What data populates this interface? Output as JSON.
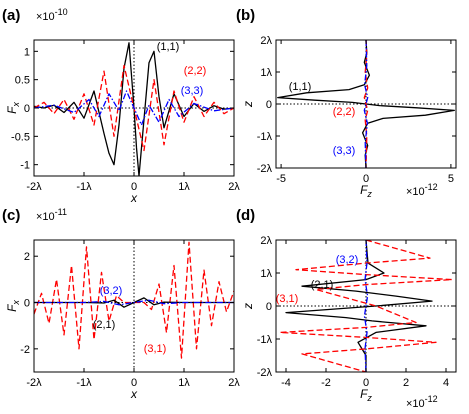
{
  "figure": {
    "panels": [
      {
        "id": "a",
        "letter": "(a)"
      },
      {
        "id": "b",
        "letter": "(b)"
      },
      {
        "id": "c",
        "letter": "(c)"
      },
      {
        "id": "d",
        "letter": "(d)"
      }
    ]
  },
  "colors": {
    "black": "#000000",
    "red": "#ff0000",
    "blue": "#0000ff"
  },
  "chart_data": [
    {
      "panel": "(a)",
      "type": "line",
      "xlabel": "x",
      "ylabel": "F_x",
      "exponent": "×10^-10",
      "xlim": [
        -2,
        2
      ],
      "ylim": [
        -1.2,
        1.2
      ],
      "xticks": [
        -2,
        -1,
        0,
        1,
        2
      ],
      "xticklabels": [
        "-2λ",
        "-1λ",
        "0",
        "1λ",
        "2λ"
      ],
      "yticks": [
        -1,
        -0.5,
        0,
        0.5,
        1
      ],
      "yticklabels": [
        "-1",
        "-0.5",
        "0",
        "0.5",
        "1"
      ],
      "zero_lines": [
        "horizontal",
        "vertical"
      ],
      "series": [
        {
          "name": "(1,1)",
          "color": "#000000",
          "style": "solid",
          "x": [
            -2,
            -1.8,
            -1.6,
            -1.4,
            -1.2,
            -1.0,
            -0.8,
            -0.6,
            -0.5,
            -0.4,
            -0.3,
            -0.2,
            -0.1,
            0,
            0.05,
            0.1,
            0.2,
            0.3,
            0.4,
            0.5,
            0.6,
            0.8,
            1.0,
            1.2,
            1.4,
            1.6,
            1.8,
            2
          ],
          "y": [
            0.03,
            0.0,
            0.05,
            -0.08,
            0.1,
            -0.18,
            0.3,
            -0.45,
            -0.8,
            -1.0,
            -0.3,
            0.7,
            1.15,
            0.0,
            -0.7,
            -1.2,
            -0.2,
            0.8,
            1.0,
            0.2,
            -0.35,
            0.25,
            -0.15,
            0.08,
            -0.06,
            0.04,
            -0.02,
            0.0
          ]
        },
        {
          "name": "(2,2)",
          "color": "#ff0000",
          "style": "dashed",
          "x": [
            -2,
            -1.8,
            -1.6,
            -1.4,
            -1.2,
            -1.0,
            -0.8,
            -0.6,
            -0.4,
            -0.2,
            0,
            0.2,
            0.4,
            0.6,
            0.8,
            1.0,
            1.2,
            1.4,
            1.6,
            1.8,
            2
          ],
          "y": [
            0.0,
            0.1,
            -0.1,
            0.15,
            -0.2,
            0.25,
            -0.3,
            0.65,
            -0.5,
            0.75,
            0.0,
            -0.75,
            0.5,
            -0.65,
            0.3,
            -0.25,
            0.2,
            -0.15,
            0.1,
            -0.1,
            0.0
          ]
        },
        {
          "name": "(3,3)",
          "color": "#0000ff",
          "style": "dashdot",
          "x": [
            -2,
            -1.6,
            -1.2,
            -0.9,
            -0.7,
            -0.5,
            -0.3,
            -0.15,
            0,
            0.15,
            0.3,
            0.5,
            0.7,
            0.9,
            1.2,
            1.6,
            2
          ],
          "y": [
            0.0,
            0.05,
            -0.08,
            0.15,
            -0.15,
            0.25,
            -0.05,
            0.3,
            0.0,
            -0.3,
            0.05,
            -0.25,
            0.15,
            -0.15,
            0.08,
            -0.05,
            0.0
          ]
        }
      ]
    },
    {
      "panel": "(b)",
      "type": "line",
      "xlabel": "F_z",
      "ylabel": "z",
      "exponent": "×10^-12",
      "xlim": [
        -5.3,
        5.3
      ],
      "ylim": [
        -2,
        2
      ],
      "xticks": [
        -5,
        0,
        5
      ],
      "xticklabels": [
        "-5",
        "0",
        "5"
      ],
      "yticks": [
        -2,
        -1,
        0,
        1,
        2
      ],
      "yticklabels": [
        "-2λ",
        "-1λ",
        "0",
        "1λ",
        "2λ"
      ],
      "zero_lines": [
        "horizontal",
        "vertical"
      ],
      "series": [
        {
          "name": "(1,1)",
          "color": "#000000",
          "style": "solid",
          "x": [
            0.0,
            0.05,
            -0.1,
            0.2,
            -0.1,
            -1.0,
            -3.5,
            -5.2,
            -3.0,
            -0.8,
            0.0,
            0.8,
            3.0,
            5.2,
            3.5,
            1.0,
            0.1,
            -0.2,
            0.1,
            -0.05,
            0.0
          ],
          "y": [
            2.0,
            1.6,
            1.3,
            0.9,
            0.6,
            0.45,
            0.35,
            0.2,
            0.12,
            0.05,
            0.0,
            -0.05,
            -0.12,
            -0.2,
            -0.35,
            -0.45,
            -0.6,
            -0.9,
            -1.3,
            -1.6,
            -2.0
          ]
        },
        {
          "name": "(2,2)",
          "color": "#ff0000",
          "style": "dashed",
          "x": [
            0.0,
            0.05,
            -0.05,
            0.1,
            -0.1,
            0.0,
            0.1,
            -0.05,
            0.05,
            0.0
          ],
          "y": [
            2.0,
            1.5,
            1.0,
            0.5,
            0.2,
            0.0,
            -0.2,
            -0.5,
            -1.0,
            -2.0
          ]
        },
        {
          "name": "(3,3)",
          "color": "#0000ff",
          "style": "dashdot",
          "x": [
            0.0,
            0.05,
            -0.08,
            0.1,
            0.0,
            -0.1,
            0.08,
            -0.05,
            0.0
          ],
          "y": [
            2.0,
            1.2,
            0.6,
            0.2,
            0.0,
            -0.2,
            -0.6,
            -1.2,
            -2.0
          ]
        }
      ]
    },
    {
      "panel": "(c)",
      "type": "line",
      "xlabel": "x",
      "ylabel": "F_x",
      "exponent": "×10^-11",
      "xlim": [
        -2,
        2
      ],
      "ylim": [
        -3,
        2.7
      ],
      "xticks": [
        -2,
        -1,
        0,
        1,
        2
      ],
      "xticklabels": [
        "-2λ",
        "-1λ",
        "0",
        "1λ",
        "2λ"
      ],
      "yticks": [
        -2,
        0,
        2
      ],
      "yticklabels": [
        "-2",
        "0",
        "2"
      ],
      "zero_lines": [
        "horizontal",
        "vertical"
      ],
      "series": [
        {
          "name": "(3,1)",
          "color": "#ff0000",
          "style": "dashed",
          "x": [
            -2,
            -1.85,
            -1.7,
            -1.55,
            -1.4,
            -1.25,
            -1.1,
            -0.95,
            -0.8,
            -0.65,
            -0.5,
            -0.35,
            -0.2,
            0,
            0.2,
            0.35,
            0.5,
            0.65,
            0.8,
            0.95,
            1.1,
            1.25,
            1.4,
            1.55,
            1.7,
            1.85,
            2
          ],
          "y": [
            -0.5,
            0.4,
            -0.9,
            1.0,
            -1.4,
            1.6,
            -2.0,
            2.4,
            -1.6,
            1.3,
            -0.8,
            0.3,
            0.0,
            0.0,
            0.0,
            -0.3,
            0.8,
            -1.3,
            1.6,
            -2.4,
            2.6,
            -2.0,
            1.4,
            -1.0,
            0.9,
            -0.4,
            0.5
          ]
        },
        {
          "name": "(2,1)",
          "color": "#000000",
          "style": "solid",
          "x": [
            -2,
            -1,
            -0.6,
            -0.4,
            -0.2,
            0,
            0.2,
            0.4,
            0.6,
            1,
            2
          ],
          "y": [
            0.0,
            0.0,
            -0.02,
            0.1,
            -0.2,
            0.0,
            0.2,
            -0.1,
            0.02,
            0.0,
            0.0
          ]
        },
        {
          "name": "(3,2)",
          "color": "#0000ff",
          "style": "dashdot",
          "x": [
            -2,
            -1,
            -0.6,
            -0.3,
            0,
            0.3,
            0.6,
            1,
            2
          ],
          "y": [
            0.0,
            0.0,
            0.05,
            -0.1,
            0.0,
            0.1,
            -0.05,
            0.0,
            0.0
          ]
        }
      ]
    },
    {
      "panel": "(d)",
      "type": "line",
      "xlabel": "F_z",
      "ylabel": "z",
      "exponent": "×10^-12",
      "xlim": [
        -4.5,
        4.5
      ],
      "ylim": [
        -2,
        2
      ],
      "xticks": [
        -4,
        -2,
        0,
        2,
        4
      ],
      "xticklabels": [
        "-4",
        "-2",
        "0",
        "2",
        "4"
      ],
      "yticks": [
        -2,
        -1,
        0,
        1,
        2
      ],
      "yticklabels": [
        "-2λ",
        "-1λ",
        "0",
        "1λ",
        "2λ"
      ],
      "zero_lines": [
        "horizontal",
        "vertical"
      ],
      "series": [
        {
          "name": "(2,1)",
          "color": "#000000",
          "style": "solid",
          "x": [
            0.0,
            0.1,
            0.9,
            0.0,
            -3.2,
            -0.5,
            1.5,
            3.3,
            0.5,
            -4.0,
            -1.0,
            0.3,
            3.0,
            0.5,
            -0.4,
            0.0,
            0.0
          ],
          "y": [
            2.0,
            1.3,
            1.0,
            0.8,
            0.6,
            0.45,
            0.3,
            0.15,
            0.0,
            -0.2,
            -0.35,
            -0.45,
            -0.6,
            -0.8,
            -1.1,
            -1.5,
            -2.0
          ]
        },
        {
          "name": "(3,1)",
          "color": "#ff0000",
          "style": "dashed",
          "x": [
            0.0,
            3.2,
            0.0,
            -3.5,
            0.0,
            4.3,
            0.0,
            -2.5,
            0.5,
            2.5,
            0.0,
            -4.3,
            0.0,
            3.5,
            0.0,
            -3.2,
            0.0
          ],
          "y": [
            2.0,
            1.45,
            1.3,
            1.1,
            0.95,
            0.8,
            0.65,
            0.5,
            0.0,
            -0.5,
            -0.65,
            -0.8,
            -0.95,
            -1.1,
            -1.3,
            -1.45,
            -2.0
          ]
        },
        {
          "name": "(3,2)",
          "color": "#0000ff",
          "style": "dashdot",
          "x": [
            0.0,
            0.05,
            -0.05,
            0.08,
            0.0,
            -0.08,
            0.05,
            -0.05,
            0.0
          ],
          "y": [
            2.0,
            1.3,
            0.8,
            0.3,
            0.0,
            -0.3,
            -0.8,
            -1.3,
            -2.0
          ]
        }
      ]
    }
  ],
  "annotations": {
    "a": [
      {
        "text": "(1,1)",
        "color": "#000000"
      },
      {
        "text": "(2,2)",
        "color": "#ff0000"
      },
      {
        "text": "(3,3)",
        "color": "#0000ff"
      }
    ],
    "b": [
      {
        "text": "(1,1)",
        "color": "#000000"
      },
      {
        "text": "(2,2)",
        "color": "#ff0000"
      },
      {
        "text": "(3,3)",
        "color": "#0000ff"
      }
    ],
    "c": [
      {
        "text": "(3,2)",
        "color": "#0000ff"
      },
      {
        "text": "(2,1)",
        "color": "#000000"
      },
      {
        "text": "(3,1)",
        "color": "#ff0000"
      }
    ],
    "d": [
      {
        "text": "(3,2)",
        "color": "#0000ff"
      },
      {
        "text": "(2,1)",
        "color": "#000000"
      },
      {
        "text": "(3,1)",
        "color": "#ff0000"
      }
    ]
  }
}
